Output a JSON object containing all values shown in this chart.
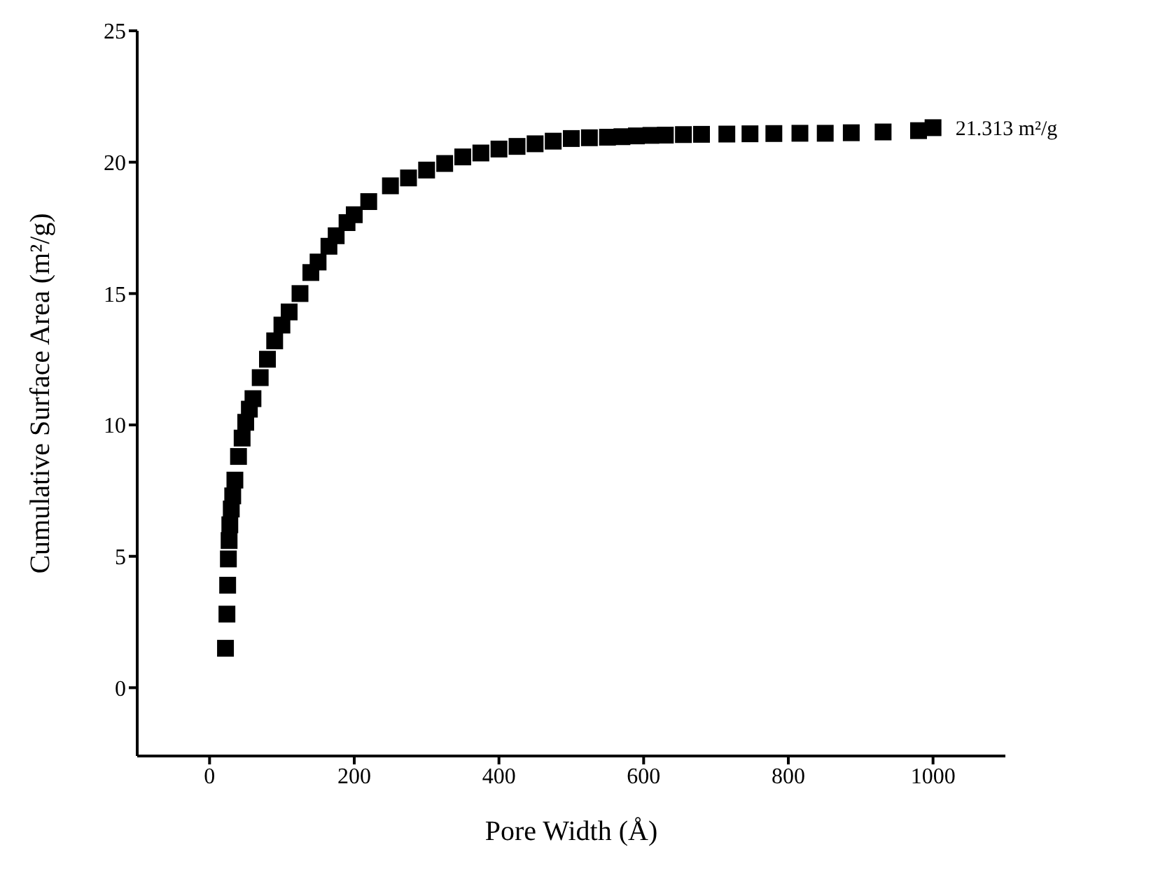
{
  "chart_data": {
    "type": "scatter",
    "xlabel": "Pore Width (Å)",
    "ylabel": "Cumulative Surface Area (m²/g)",
    "xlim": [
      -100,
      1100
    ],
    "xticks": [
      0,
      200,
      400,
      600,
      800,
      1000
    ],
    "ylim": [
      -2.6,
      25
    ],
    "yticks": [
      0,
      5,
      10,
      15,
      20,
      25
    ],
    "grid": false,
    "legend": false,
    "marker": "square",
    "annotations": [
      {
        "text": "21.313 m²/g",
        "x": 1000,
        "y": 21.313
      }
    ],
    "series": [
      {
        "color": "#000000",
        "x": [
          22,
          24,
          25,
          26,
          27,
          28,
          30,
          32,
          35,
          40,
          45,
          50,
          55,
          60,
          70,
          80,
          90,
          100,
          110,
          125,
          140,
          150,
          165,
          175,
          190,
          200,
          220,
          250,
          275,
          300,
          325,
          350,
          375,
          400,
          425,
          450,
          475,
          500,
          525,
          550,
          570,
          590,
          610,
          630,
          655,
          680,
          715,
          747,
          780,
          816,
          851,
          887,
          931,
          980,
          1000
        ],
        "values": [
          1.5,
          2.8,
          3.9,
          4.9,
          5.6,
          6.2,
          6.8,
          7.3,
          7.9,
          8.8,
          9.5,
          10.1,
          10.6,
          11.0,
          11.8,
          12.5,
          13.2,
          13.8,
          14.3,
          15.0,
          15.8,
          16.2,
          16.8,
          17.2,
          17.7,
          18.0,
          18.5,
          19.1,
          19.4,
          19.7,
          19.95,
          20.2,
          20.35,
          20.5,
          20.6,
          20.7,
          20.8,
          20.9,
          20.93,
          20.95,
          20.97,
          21.0,
          21.02,
          21.03,
          21.05,
          21.06,
          21.07,
          21.08,
          21.09,
          21.1,
          21.1,
          21.12,
          21.15,
          21.2,
          21.313
        ]
      }
    ]
  }
}
